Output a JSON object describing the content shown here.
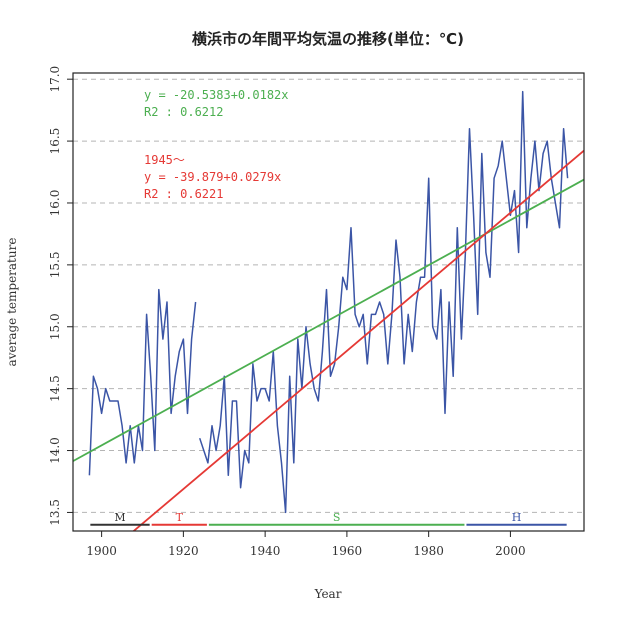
{
  "chart_data": {
    "type": "line",
    "title": "横浜市の年間平均気温の推移(単位：℃)",
    "xlabel": "Year",
    "ylabel": "average temperature",
    "xlim": [
      1893,
      2018
    ],
    "ylim": [
      13.35,
      17.05
    ],
    "x_ticks": [
      1900,
      1920,
      1940,
      1960,
      1980,
      2000
    ],
    "y_ticks": [
      13.5,
      14.0,
      14.5,
      15.0,
      15.5,
      16.0,
      16.5,
      17.0
    ],
    "grid": "horizontal-dashed",
    "series": [
      {
        "color": "#3b55a6",
        "segments": [
          {
            "x": [
              1897,
              1898,
              1899,
              1900,
              1901,
              1902,
              1903,
              1904,
              1905,
              1906,
              1907,
              1908,
              1909,
              1910,
              1911,
              1912,
              1913,
              1914,
              1915,
              1916,
              1917,
              1918,
              1919,
              1920,
              1921,
              1922,
              1923
            ],
            "y": [
              13.8,
              14.6,
              14.5,
              14.3,
              14.5,
              14.4,
              14.4,
              14.4,
              14.2,
              13.9,
              14.2,
              13.9,
              14.2,
              14.0,
              15.1,
              14.6,
              14.0,
              15.3,
              14.9,
              15.2,
              14.3,
              14.6,
              14.8,
              14.9,
              14.3,
              14.9,
              15.2
            ]
          },
          {
            "x": [
              1924,
              1925,
              1926,
              1927,
              1928,
              1929,
              1930,
              1931,
              1932,
              1933,
              1934,
              1935,
              1936,
              1937,
              1938,
              1939,
              1940,
              1941,
              1942,
              1943,
              1944,
              1945,
              1946,
              1947,
              1948,
              1949,
              1950,
              1951,
              1952,
              1953,
              1954,
              1955,
              1956,
              1957,
              1958,
              1959,
              1960,
              1961,
              1962,
              1963,
              1964,
              1965,
              1966,
              1967,
              1968,
              1969,
              1970,
              1971,
              1972,
              1973,
              1974,
              1975,
              1976,
              1977,
              1978,
              1979,
              1980,
              1981,
              1982,
              1983,
              1984,
              1985,
              1986,
              1987,
              1988,
              1989,
              1990,
              1991,
              1992,
              1993,
              1994,
              1995,
              1996,
              1997,
              1998,
              1999,
              2000,
              2001,
              2002,
              2003,
              2004,
              2005,
              2006,
              2007,
              2008,
              2009,
              2010,
              2011,
              2012,
              2013,
              2014
            ],
            "y": [
              14.1,
              14.0,
              13.9,
              14.2,
              14.0,
              14.2,
              14.6,
              13.8,
              14.4,
              14.4,
              13.7,
              14.0,
              13.9,
              14.7,
              14.4,
              14.5,
              14.5,
              14.4,
              14.8,
              14.2,
              13.9,
              13.5,
              14.6,
              13.9,
              14.9,
              14.5,
              15.0,
              14.7,
              14.5,
              14.4,
              14.8,
              15.3,
              14.6,
              14.7,
              15.0,
              15.4,
              15.3,
              15.8,
              15.1,
              15.0,
              15.1,
              14.7,
              15.1,
              15.1,
              15.2,
              15.1,
              14.7,
              15.1,
              15.7,
              15.4,
              14.7,
              15.1,
              14.8,
              15.2,
              15.4,
              15.4,
              16.2,
              15.0,
              14.9,
              15.3,
              14.3,
              15.2,
              14.6,
              15.8,
              14.9,
              15.6,
              16.6,
              15.9,
              15.1,
              16.4,
              15.6,
              15.4,
              16.2,
              16.3,
              16.5,
              16.2,
              15.9,
              16.1,
              15.6,
              16.9,
              15.8,
              16.2,
              16.5,
              16.1,
              16.4,
              16.5,
              16.2,
              16.0,
              15.8,
              16.6,
              16.2
            ]
          }
        ]
      },
      {
        "color": "#4caf50",
        "kind": "regression",
        "intercept": -20.5383,
        "slope": 0.0182
      },
      {
        "color": "#e53935",
        "kind": "regression",
        "intercept": -39.879,
        "slope": 0.0279
      }
    ],
    "annotations": [
      {
        "lines": [
          "y = -20.5383+0.0182x",
          "R2 : 0.6212"
        ],
        "color": "#4caf50",
        "position": "top-left"
      },
      {
        "lines": [
          "1945～",
          "y = -39.879+0.0279x",
          "R2 : 0.6221"
        ],
        "color": "#e53935",
        "position": "upper-left"
      }
    ],
    "eras": [
      {
        "label": "M",
        "start": 1897,
        "end": 1912,
        "color": "#333333"
      },
      {
        "label": "T",
        "start": 1912,
        "end": 1926,
        "color": "#e53935"
      },
      {
        "label": "S",
        "start": 1926,
        "end": 1989,
        "color": "#4caf50"
      },
      {
        "label": "H",
        "start": 1989,
        "end": 2014,
        "color": "#3b55a6"
      }
    ],
    "era_line_y": 13.4
  }
}
